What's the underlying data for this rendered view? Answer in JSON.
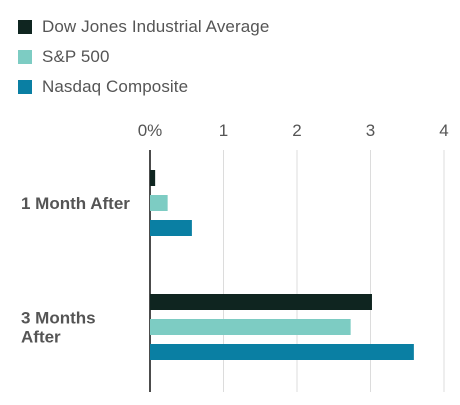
{
  "chart_data": {
    "type": "bar",
    "orientation": "horizontal",
    "categories": [
      "1 Month After",
      "3 Months After"
    ],
    "category_label_lines": [
      [
        "1 Month After"
      ],
      [
        "3 Months",
        "After"
      ]
    ],
    "series": [
      {
        "name": "Dow Jones Industrial Average",
        "color": "#0f2520",
        "values": [
          0.07,
          3.02
        ]
      },
      {
        "name": "S&P 500",
        "color": "#7dccc3",
        "values": [
          0.24,
          2.73
        ]
      },
      {
        "name": "Nasdaq Composite",
        "color": "#0a7fa3",
        "values": [
          0.57,
          3.59
        ]
      }
    ],
    "x_ticks": [
      "0%",
      "1",
      "2",
      "3",
      "4"
    ],
    "xlim": [
      0,
      4
    ],
    "grid": true,
    "legend_position": "top-left",
    "xlabel": "",
    "ylabel": "",
    "title": ""
  }
}
